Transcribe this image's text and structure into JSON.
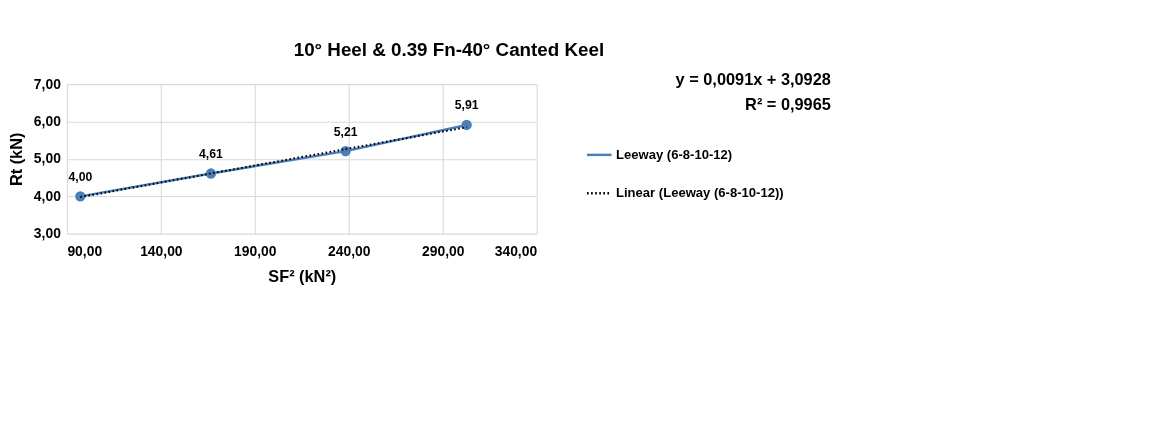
{
  "chart_data": {
    "type": "line",
    "title": "10° Heel & 0.39 Fn-40° Canted Keel",
    "xlabel": "SF² (kN²)",
    "ylabel": "Rt (kN)",
    "xlim": [
      90,
      340
    ],
    "xticks": [
      {
        "value": 90,
        "label": "90,00"
      },
      {
        "value": 140,
        "label": "140,00"
      },
      {
        "value": 190,
        "label": "190,00"
      },
      {
        "value": 240,
        "label": "240,00"
      },
      {
        "value": 290,
        "label": "290,00"
      },
      {
        "value": 340,
        "label": "340,00"
      }
    ],
    "ylim": [
      3,
      7
    ],
    "yticks": [
      {
        "value": 3,
        "label": "3,00"
      },
      {
        "value": 4,
        "label": "4,00"
      },
      {
        "value": 5,
        "label": "5,00"
      },
      {
        "value": 6,
        "label": "6,00"
      },
      {
        "value": 7,
        "label": "7,00"
      }
    ],
    "grid": true,
    "legend": "right",
    "marker": "circle",
    "annotations": [
      "y = 0,0091x + 3,0928",
      "R² = 0,9965"
    ],
    "series": [
      {
        "name": "Leeway (6-8-10-12)",
        "color": "#4a7ebb",
        "line_style": "solid",
        "x": [
          97.1,
          166.6,
          238.3,
          302.7
        ],
        "values": [
          4.0,
          4.61,
          5.21,
          5.91
        ],
        "value_labels": [
          "4,00",
          "4,61",
          "5,21",
          "5,91"
        ]
      },
      {
        "name": "Linear (Leeway (6-8-10-12))",
        "color": "#000000",
        "type": "line",
        "line_style": "dotted",
        "marker": "none",
        "x": [
          97.1,
          302.7
        ],
        "values": [
          3.98,
          5.85
        ]
      }
    ]
  }
}
